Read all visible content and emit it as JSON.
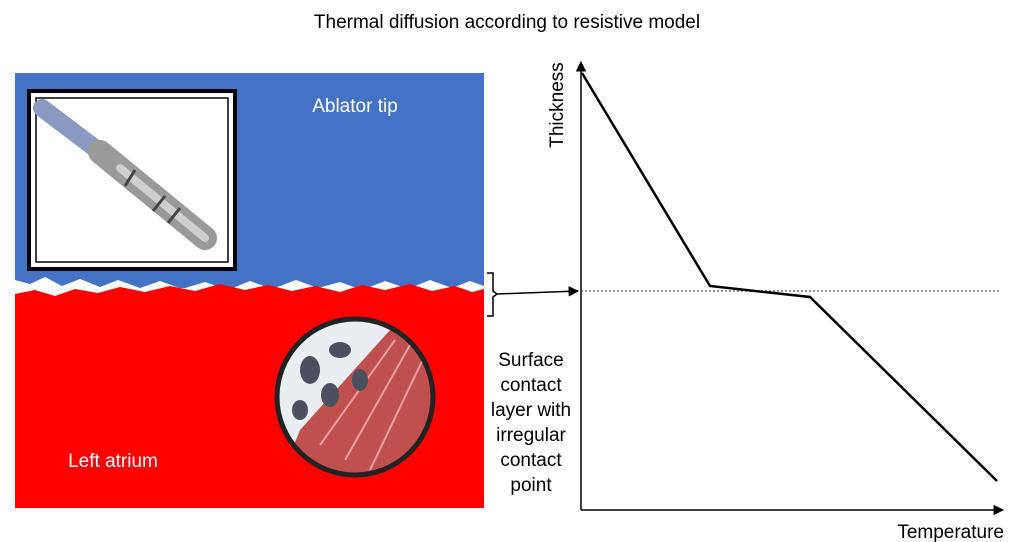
{
  "title": "Thermal diffusion according to resistive model",
  "diagram": {
    "ablator_label": "Ablator tip",
    "atrium_label": "Left atrium",
    "surface_label": [
      "Surface",
      "contact",
      "layer with",
      "irregular",
      "contact",
      "point"
    ],
    "y_axis_label": "Thickness",
    "x_axis_label": "Temperature"
  }
}
